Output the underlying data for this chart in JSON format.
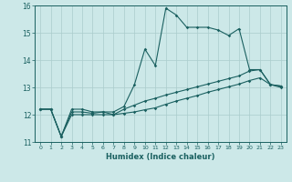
{
  "xlabel": "Humidex (Indice chaleur)",
  "ylabel": "",
  "background_color": "#cce8e8",
  "grid_color": "#aacccc",
  "line_color": "#1a6060",
  "xlim": [
    -0.5,
    23.5
  ],
  "ylim": [
    11,
    16
  ],
  "xticks": [
    0,
    1,
    2,
    3,
    4,
    5,
    6,
    7,
    8,
    9,
    10,
    11,
    12,
    13,
    14,
    15,
    16,
    17,
    18,
    19,
    20,
    21,
    22,
    23
  ],
  "yticks": [
    11,
    12,
    13,
    14,
    15,
    16
  ],
  "line1_x": [
    0,
    1,
    2,
    3,
    4,
    5,
    6,
    7,
    8,
    9,
    10,
    11,
    12,
    13,
    14,
    15,
    16,
    17,
    18,
    19,
    20,
    21,
    22,
    23
  ],
  "line1_y": [
    12.2,
    12.2,
    11.2,
    12.2,
    12.2,
    12.1,
    12.1,
    12.1,
    12.3,
    13.1,
    14.4,
    13.8,
    15.9,
    15.65,
    15.2,
    15.2,
    15.2,
    15.1,
    14.9,
    15.15,
    13.65,
    13.65,
    13.1,
    13.05
  ],
  "line2_x": [
    0,
    1,
    2,
    3,
    4,
    5,
    6,
    7,
    8,
    9,
    10,
    11,
    12,
    13,
    14,
    15,
    16,
    17,
    18,
    19,
    20,
    21,
    22,
    23
  ],
  "line2_y": [
    12.2,
    12.2,
    11.2,
    12.1,
    12.1,
    12.05,
    12.1,
    12.0,
    12.2,
    12.35,
    12.5,
    12.6,
    12.72,
    12.82,
    12.92,
    13.02,
    13.12,
    13.22,
    13.32,
    13.42,
    13.6,
    13.65,
    13.1,
    13.05
  ],
  "line3_x": [
    0,
    1,
    2,
    3,
    4,
    5,
    6,
    7,
    8,
    9,
    10,
    11,
    12,
    13,
    14,
    15,
    16,
    17,
    18,
    19,
    20,
    21,
    22,
    23
  ],
  "line3_y": [
    12.2,
    12.2,
    11.2,
    12.0,
    12.0,
    12.0,
    12.0,
    12.0,
    12.05,
    12.1,
    12.18,
    12.25,
    12.38,
    12.5,
    12.6,
    12.7,
    12.82,
    12.92,
    13.02,
    13.12,
    13.25,
    13.35,
    13.1,
    13.0
  ]
}
